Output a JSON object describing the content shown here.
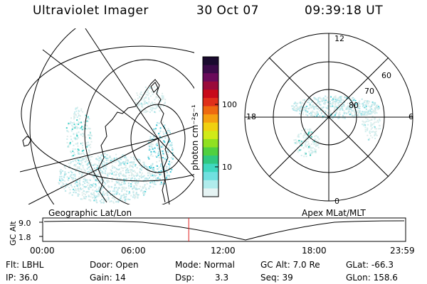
{
  "header": {
    "title": "Ultraviolet Imager",
    "date": "30 Oct 07",
    "time": "09:39:18 UT"
  },
  "geo_panel": {
    "label": "Geographic Lat/Lon"
  },
  "apex_panel": {
    "label": "Apex MLat/MLT",
    "lat_labels": [
      "80",
      "70",
      "60"
    ],
    "mlt_labels": {
      "top": "12",
      "bottom": "0",
      "left": "18",
      "right": "6"
    }
  },
  "colorbar": {
    "unit_label": "photon cm⁻²s⁻¹",
    "ticks": [
      "100",
      "10"
    ],
    "colors": [
      "#1a0a2e",
      "#3b0a48",
      "#6a0a5a",
      "#9a0a3a",
      "#c80a1a",
      "#e0301a",
      "#ee6a10",
      "#f5a010",
      "#f0d010",
      "#d0ea18",
      "#90e020",
      "#50d040",
      "#30c880",
      "#40d8c0",
      "#70e0e0",
      "#b0ecec",
      "#e6f4f4"
    ]
  },
  "altitude_plot": {
    "ylabel": "GC Alt",
    "y_ticks": [
      "9.0",
      "1.8"
    ],
    "x_ticks": [
      "00:00",
      "06:00",
      "12:00",
      "18:00",
      "23:59"
    ],
    "marker_time": "09:39"
  },
  "info": {
    "flt": "Flt: LBHL",
    "door": "Door: Open",
    "mode": "Mode: Normal",
    "gc_alt": "GC Alt: 7.0 Re",
    "glat": "GLat: -66.3",
    "ip": "IP: 36.0",
    "gain": "Gain: 14",
    "dsp_label": "Dsp:",
    "dsp_value": "3.3",
    "seq": "Seq: 39",
    "glon": "GLon: 158.6"
  }
}
